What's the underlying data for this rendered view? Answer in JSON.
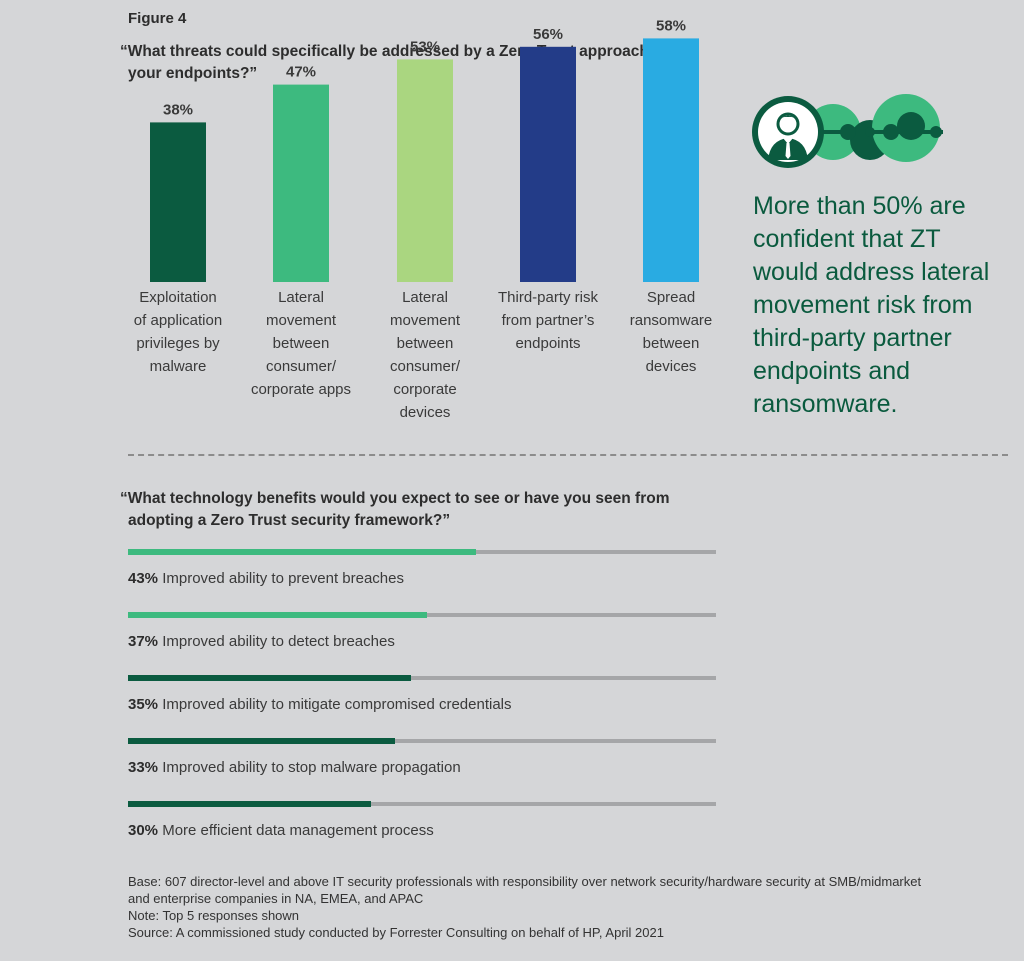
{
  "figure_label": "Figure 4",
  "chart_data": [
    {
      "type": "bar",
      "title_lines": [
        "“What threats could specifically be addressed by a Zero Trust approach for",
        "your endpoints?”"
      ],
      "categories": [
        [
          "Exploitation",
          "of application",
          "privileges by",
          "malware"
        ],
        [
          "Lateral",
          "movement",
          "between",
          "consumer/",
          "corporate apps"
        ],
        [
          "Lateral",
          "movement",
          "between",
          "consumer/",
          "corporate",
          "devices"
        ],
        [
          "Third-party risk",
          "from partner’s",
          "endpoints"
        ],
        [
          "Spread",
          "ransomware",
          "between",
          "devices"
        ]
      ],
      "values": [
        38,
        47,
        53,
        56,
        58
      ],
      "value_labels": [
        "38%",
        "47%",
        "53%",
        "56%",
        "58%"
      ],
      "colors": [
        "#0b5b40",
        "#3dba7f",
        "#aad680",
        "#233c88",
        "#29abe2"
      ],
      "ylim": [
        0,
        100
      ]
    },
    {
      "type": "bar",
      "orientation": "horizontal",
      "title_lines": [
        "“What technology benefits would you expect to see or have you seen from",
        "adopting a Zero Trust security framework?”"
      ],
      "items": [
        {
          "value": 43,
          "value_label": "43%",
          "label": "Improved ability to prevent breaches",
          "color": "#3dba7f"
        },
        {
          "value": 37,
          "value_label": "37%",
          "label": "Improved ability to detect breaches",
          "color": "#3dba7f"
        },
        {
          "value": 35,
          "value_label": "35%",
          "label": "Improved ability to mitigate compromised credentials",
          "color": "#0b5b40"
        },
        {
          "value": 33,
          "value_label": "33%",
          "label": "Improved ability to stop malware propagation",
          "color": "#0b5b40"
        },
        {
          "value": 30,
          "value_label": "30%",
          "label": "More efficient data management process",
          "color": "#0b5b40"
        }
      ],
      "xlim": [
        0,
        100
      ]
    }
  ],
  "callout": {
    "lines": [
      "More than 50% are",
      "confident that ZT",
      "would address lateral",
      "movement risk from",
      "third-party partner",
      "endpoints and",
      "ransomware."
    ],
    "icon": "person-network-icon"
  },
  "footnotes": {
    "base_lines": [
      "Base: 607 director-level and above IT security professionals with responsibility over network security/hardware security at SMB/midmarket",
      "and enterprise companies in NA, EMEA, and APAC"
    ],
    "note": "Note: Top 5 responses shown",
    "source": "Source: A commissioned study conducted by Forrester Consulting on behalf of HP, April 2021"
  }
}
